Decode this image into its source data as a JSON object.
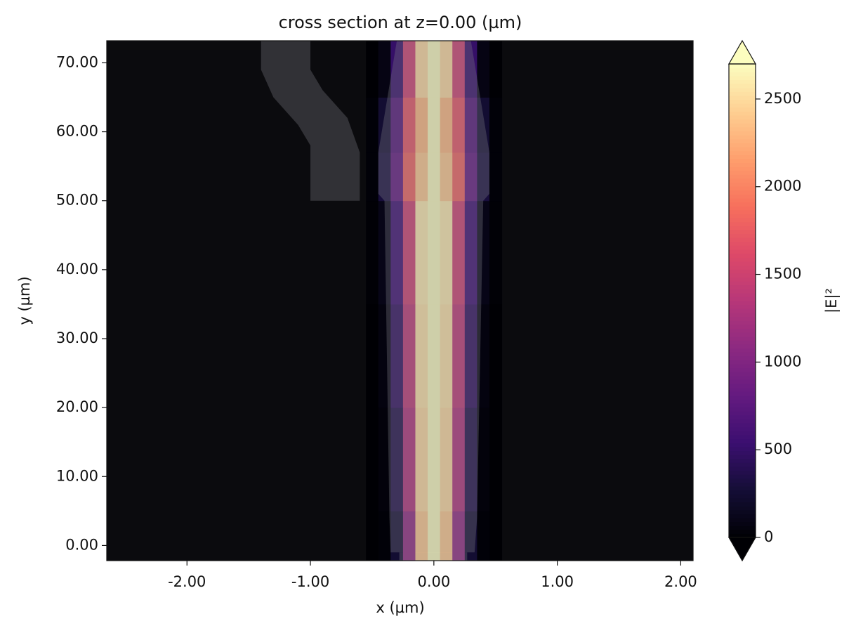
{
  "chart_data": {
    "type": "heatmap",
    "title": "cross section at z=0.00 (µm)",
    "xlabel": "x (µm)",
    "ylabel": "y (µm)",
    "colorbar_label": "|E|²",
    "colormap": "magma",
    "xlim": [
      -2.65,
      2.1
    ],
    "ylim": [
      -2.2,
      73.2
    ],
    "xticks": [
      {
        "value": -2,
        "label": "-2.00"
      },
      {
        "value": -1,
        "label": "-1.00"
      },
      {
        "value": 0,
        "label": "0.00"
      },
      {
        "value": 1,
        "label": "1.00"
      },
      {
        "value": 2,
        "label": "2.00"
      }
    ],
    "yticks": [
      {
        "value": 0,
        "label": "0.00"
      },
      {
        "value": 10,
        "label": "10.00"
      },
      {
        "value": 20,
        "label": "20.00"
      },
      {
        "value": 30,
        "label": "30.00"
      },
      {
        "value": 40,
        "label": "40.00"
      },
      {
        "value": 50,
        "label": "50.00"
      },
      {
        "value": 60,
        "label": "60.00"
      },
      {
        "value": 70,
        "label": "70.00"
      }
    ],
    "clim": [
      0,
      2700
    ],
    "cticks": [
      0,
      500,
      1000,
      1500,
      2000,
      2500
    ],
    "xbins": [
      -0.55,
      -0.45,
      -0.35,
      -0.25,
      -0.15,
      -0.05,
      0.05,
      0.15,
      0.25,
      0.35,
      0.45,
      0.55
    ],
    "ybins": [
      -2.2,
      5,
      20,
      35,
      50,
      57,
      65,
      73.2
    ],
    "values": [
      [
        0,
        20,
        250,
        1100,
        2400,
        2700,
        2400,
        1100,
        250,
        20,
        0
      ],
      [
        0,
        40,
        350,
        1300,
        2500,
        2700,
        2500,
        1300,
        350,
        40,
        0
      ],
      [
        0,
        60,
        450,
        1400,
        2550,
        2700,
        2550,
        1400,
        450,
        60,
        0
      ],
      [
        10,
        100,
        550,
        1500,
        2600,
        2700,
        2600,
        1500,
        550,
        100,
        10
      ],
      [
        20,
        300,
        800,
        1800,
        2400,
        2700,
        2400,
        1800,
        800,
        300,
        20
      ],
      [
        20,
        250,
        700,
        1700,
        2300,
        2700,
        2300,
        1700,
        700,
        250,
        20
      ],
      [
        0,
        80,
        500,
        1500,
        2500,
        2700,
        2500,
        1500,
        500,
        80,
        0
      ]
    ],
    "structures": [
      {
        "x": [
          -1.4,
          -1.0,
          -1.0,
          -0.9,
          -0.7,
          -0.6,
          -0.6,
          -1.0,
          -1.0,
          -1.1,
          -1.3,
          -1.4
        ],
        "y": [
          73.2,
          73.2,
          69,
          66,
          62,
          57,
          50,
          50,
          58,
          61,
          65,
          69
        ]
      },
      {
        "x": [
          -0.35,
          -0.36,
          -0.4,
          -0.45,
          -0.45,
          -0.3,
          0.3,
          0.45,
          0.45,
          0.4,
          0.35,
          0.33
        ],
        "y": [
          -1,
          4,
          50,
          51,
          57,
          73.2,
          73.2,
          57,
          51,
          50,
          4,
          -1
        ]
      },
      {
        "x": [
          -0.28,
          0.27,
          0.27,
          -0.28
        ],
        "y": [
          -2.2,
          -2.2,
          -1,
          -1
        ]
      }
    ]
  }
}
